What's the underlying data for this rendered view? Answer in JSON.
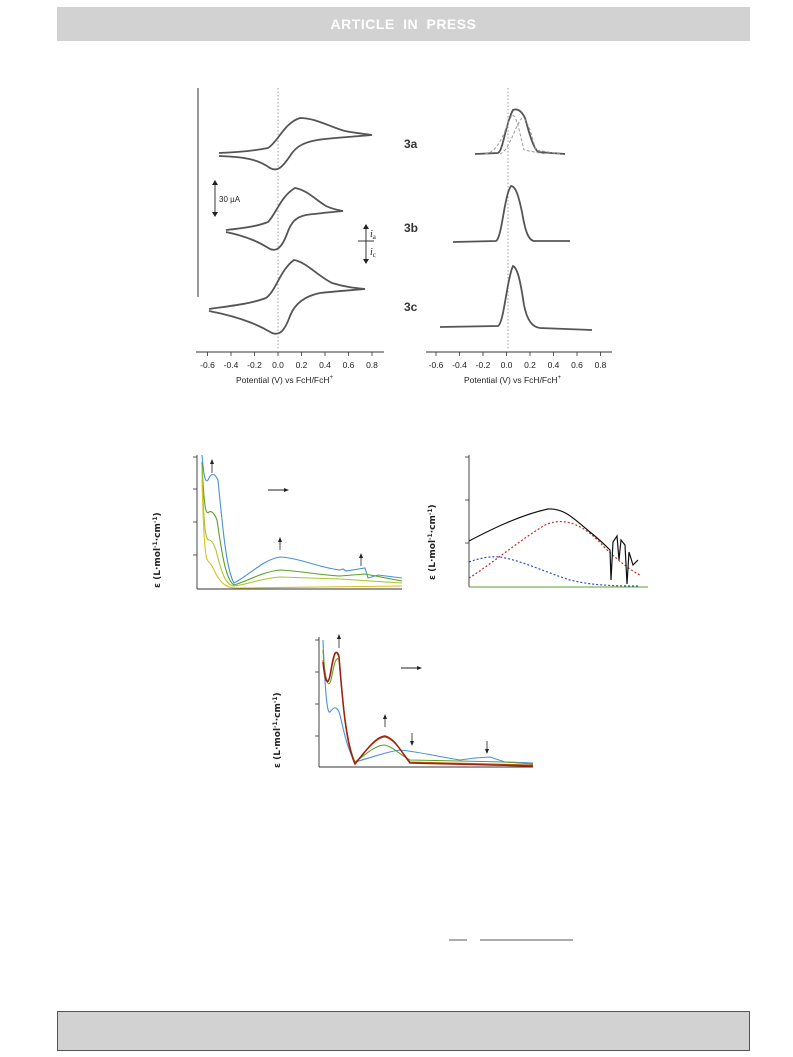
{
  "banner": {
    "text": "ARTICLE IN PRESS"
  },
  "figure_top": {
    "scale_bar_label": "30 µA",
    "current_labels": {
      "anodic": "i",
      "anodic_sub": "a",
      "cathodic": "i",
      "cathodic_sub": "c"
    },
    "compounds": [
      "3a",
      "3b",
      "3c"
    ],
    "ticks": [
      "-0.6",
      "-0.4",
      "-0.2",
      "0.0",
      "0.2",
      "0.4",
      "0.6",
      "0.8"
    ],
    "xlabel_left": "Potential (V) vs FcH/FcH",
    "xlabel_right": "Potential (V) vs FcH/FcH",
    "xlabel_sup": "+"
  },
  "figure_bottom": {
    "ylabel_a": "ε (L·mol",
    "ylabel_b": "·cm",
    "ylabel_sup1": "-1",
    "ylabel_sup2": "-1",
    "ylabel_close": ")"
  },
  "colors": {
    "blue": "#4a90d9",
    "green": "#5aa02c",
    "yellowgreen": "#a8c82a",
    "yellow": "#d8c020",
    "red_dotted": "#c03030",
    "blue_dotted": "#3050c0",
    "darkred": "#a02010",
    "orange": "#d06010",
    "trace": "#555555"
  },
  "chart_data": [
    {
      "type": "line",
      "title": "",
      "xlabel": "Potential (V) vs FcH/FcH+",
      "ylabel": "",
      "xlim": [
        -0.7,
        0.85
      ],
      "series": [
        {
          "name": "3a",
          "x": [
            -0.6,
            -0.2,
            0.0,
            0.2,
            0.4,
            0.75
          ],
          "values": [
            -4,
            -2,
            0,
            8,
            5,
            2
          ]
        },
        {
          "name": "3b",
          "x": [
            -0.55,
            -0.2,
            0.0,
            0.15,
            0.3,
            0.55
          ],
          "values": [
            -3,
            -2,
            0,
            7,
            4,
            2
          ]
        },
        {
          "name": "3c",
          "x": [
            -0.7,
            -0.2,
            0.0,
            0.2,
            0.4,
            0.8
          ],
          "values": [
            -5,
            -3,
            0,
            9,
            5,
            2
          ]
        }
      ],
      "grid": false
    },
    {
      "type": "line",
      "title": "",
      "xlabel": "Potential (V) vs FcH/FcH+",
      "ylabel": "",
      "xlim": [
        -0.7,
        0.85
      ],
      "series": [
        {
          "name": "3a",
          "x": [
            -0.3,
            0.0,
            0.05,
            0.1,
            0.2,
            0.5
          ],
          "values": [
            0,
            4,
            10,
            9,
            2,
            0
          ]
        },
        {
          "name": "3b",
          "x": [
            -0.4,
            -0.05,
            0.05,
            0.15,
            0.5
          ],
          "values": [
            0,
            2,
            10,
            2,
            0
          ]
        },
        {
          "name": "3c",
          "x": [
            -0.6,
            -0.05,
            0.07,
            0.2,
            0.7
          ],
          "values": [
            0,
            2,
            10,
            2,
            0
          ]
        }
      ],
      "grid": false
    },
    {
      "type": "line",
      "title": "",
      "xlabel": "",
      "ylabel": "ε (L·mol-1·cm-1)",
      "series": [
        {
          "name": "",
          "values": []
        }
      ],
      "grid": false
    },
    {
      "type": "line",
      "title": "",
      "xlabel": "",
      "ylabel": "ε (L·mol-1·cm-1)",
      "series": [
        {
          "name": "",
          "values": []
        }
      ],
      "grid": false
    },
    {
      "type": "line",
      "title": "",
      "xlabel": "",
      "ylabel": "ε (L·mol-1·cm-1)",
      "series": [
        {
          "name": "",
          "values": []
        }
      ],
      "grid": false
    }
  ]
}
